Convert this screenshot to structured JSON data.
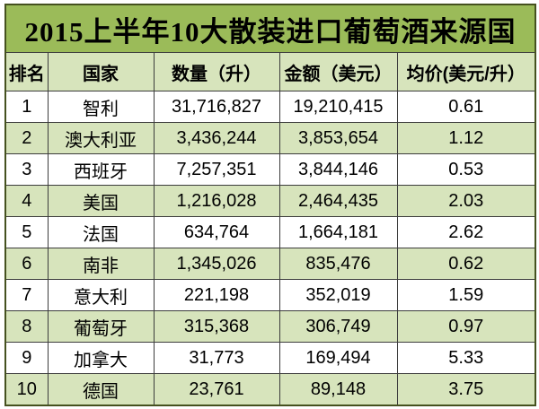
{
  "title": "2015上半年10大散装进口葡萄酒来源国",
  "colors": {
    "title_bg": "#9bbb59",
    "header_bg": "#d7e4bc",
    "row_bg": "#ffffff",
    "row_alt_bg": "#d7e4bc",
    "border_outer": "#45511f",
    "border_inner": "#3c3c3c",
    "text": "#000000"
  },
  "chart_data": {
    "type": "table",
    "title": "2015上半年10大散装进口葡萄酒来源国",
    "columns": [
      "排名",
      "国家",
      "数量（升）",
      "金额（美元）",
      "均价(美元/升）"
    ],
    "rows": [
      [
        "1",
        "智利",
        "31,716,827",
        "19,210,415",
        "0.61"
      ],
      [
        "2",
        "澳大利亚",
        "3,436,244",
        "3,853,654",
        "1.12"
      ],
      [
        "3",
        "西班牙",
        "7,257,351",
        "3,844,146",
        "0.53"
      ],
      [
        "4",
        "美国",
        "1,216,028",
        "2,464,435",
        "2.03"
      ],
      [
        "5",
        "法国",
        "634,764",
        "1,664,181",
        "2.62"
      ],
      [
        "6",
        "南非",
        "1,345,026",
        "835,476",
        "0.62"
      ],
      [
        "7",
        "意大利",
        "221,198",
        "352,019",
        "1.59"
      ],
      [
        "8",
        "葡萄牙",
        "315,368",
        "306,749",
        "0.97"
      ],
      [
        "9",
        "加拿大",
        "31,773",
        "169,494",
        "5.33"
      ],
      [
        "10",
        "德国",
        "23,761",
        "89,148",
        "3.75"
      ]
    ],
    "row_striping": "even data rows shaded light green, odd rows white",
    "legend_position": "none",
    "grid": true
  }
}
